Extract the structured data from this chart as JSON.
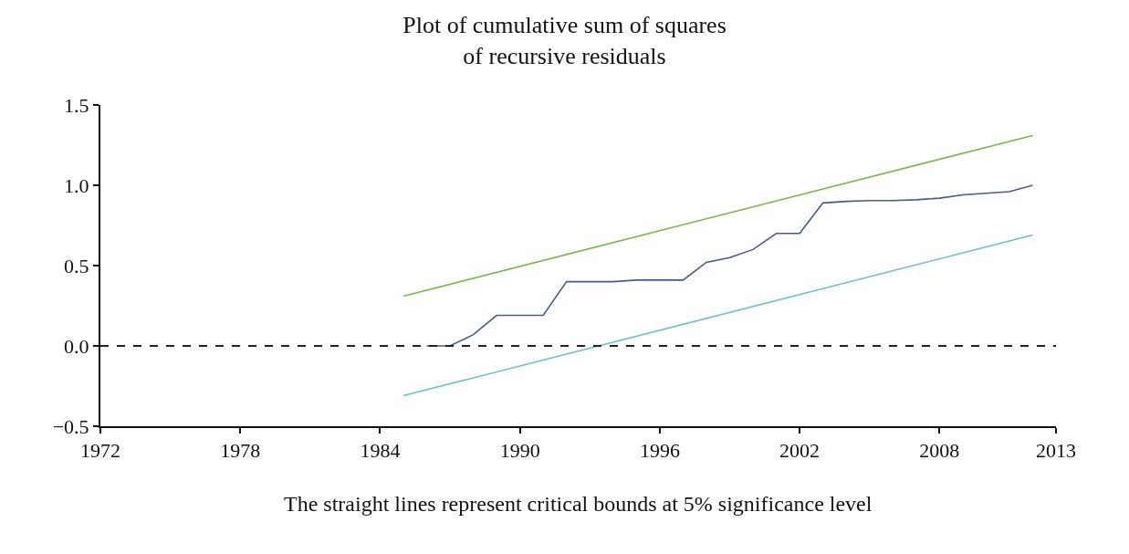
{
  "chart_data": {
    "type": "line",
    "title": "Plot of cumulative sum of squares\nof recursive residuals",
    "annotations": [
      "The straight lines represent critical bounds at 5% significance level"
    ],
    "series": [
      {
        "color": "#7ab648",
        "x": [
          1985,
          2012
        ],
        "values": [
          0.31,
          1.31
        ]
      },
      {
        "color": "#6cc0c8",
        "x": [
          1985,
          2012
        ],
        "values": [
          -0.31,
          0.69
        ]
      },
      {
        "color": "#4a5a8a",
        "x": [
          1986,
          1987,
          1988,
          1989,
          1990,
          1991,
          1992,
          1993,
          1994,
          1995,
          1996,
          1997,
          1998,
          1999,
          2000,
          2001,
          2002,
          2003,
          2004,
          2005,
          2006,
          2007,
          2008,
          2009,
          2010,
          2011,
          2012
        ],
        "values": [
          0.0,
          0.0,
          0.07,
          0.19,
          0.19,
          0.19,
          0.4,
          0.4,
          0.4,
          0.41,
          0.41,
          0.41,
          0.52,
          0.55,
          0.6,
          0.7,
          0.7,
          0.89,
          0.9,
          0.905,
          0.905,
          0.91,
          0.92,
          0.94,
          0.95,
          0.96,
          1.0
        ]
      }
    ],
    "ref_lines": [
      {
        "axis": "y",
        "value": 0,
        "color": "#222222",
        "line_style": "dashed"
      }
    ],
    "xlim": [
      1972,
      2013
    ],
    "xticks": [
      1972,
      1978,
      1984,
      1990,
      1996,
      2002,
      2008,
      2013
    ],
    "ylim": [
      -0.5,
      1.5
    ],
    "yticks": [
      {
        "value": -0.5,
        "label": "−0.5"
      },
      {
        "value": 0,
        "label": "0.0"
      },
      {
        "value": 0.5,
        "label": "0.5"
      },
      {
        "value": 1,
        "label": "1.0"
      },
      {
        "value": 1.5,
        "label": "1.5"
      }
    ],
    "marker": "none",
    "line_style": "solid"
  }
}
